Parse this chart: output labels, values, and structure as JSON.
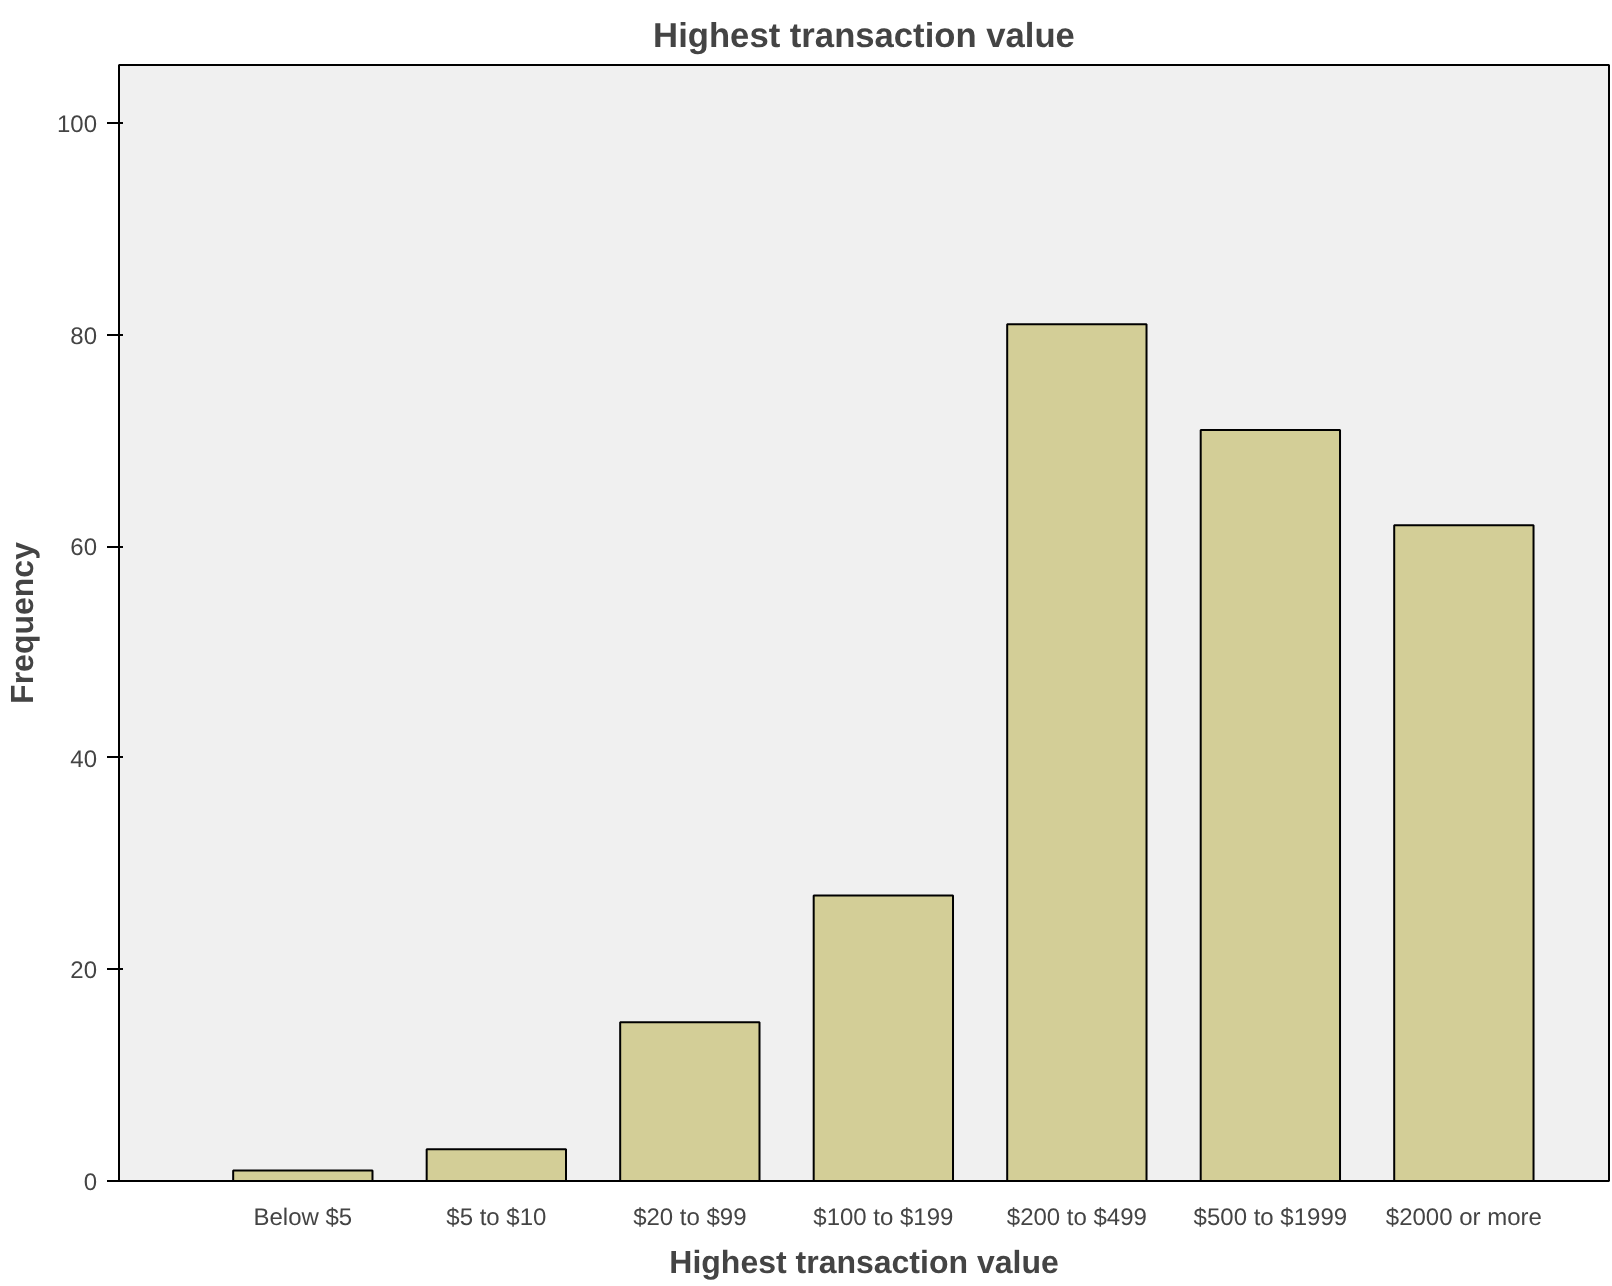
{
  "chart_data": {
    "type": "bar",
    "title": "Highest transaction value",
    "xlabel": "Highest transaction value",
    "ylabel": "Frequency",
    "categories": [
      "Below $5",
      "$5 to $10",
      "$20 to $99",
      "$100 to $199",
      "$200 to $499",
      "$500 to $1999",
      "$2000 or more"
    ],
    "values": [
      1,
      3,
      15,
      27,
      81,
      71,
      62
    ],
    "color": "#d3ce97",
    "ylim": [
      0,
      105.5
    ],
    "yticks": [
      0,
      20,
      40,
      60,
      80,
      100
    ],
    "grid": false
  }
}
